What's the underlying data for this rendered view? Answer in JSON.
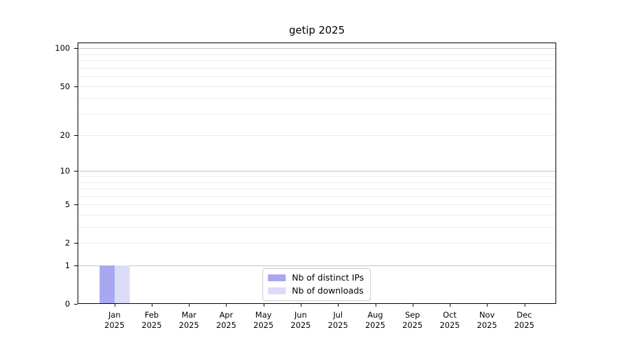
{
  "chart_data": {
    "type": "bar",
    "title": "getip 2025",
    "categories": [
      {
        "month": "Jan",
        "year": "2025"
      },
      {
        "month": "Feb",
        "year": "2025"
      },
      {
        "month": "Mar",
        "year": "2025"
      },
      {
        "month": "Apr",
        "year": "2025"
      },
      {
        "month": "May",
        "year": "2025"
      },
      {
        "month": "Jun",
        "year": "2025"
      },
      {
        "month": "Jul",
        "year": "2025"
      },
      {
        "month": "Aug",
        "year": "2025"
      },
      {
        "month": "Sep",
        "year": "2025"
      },
      {
        "month": "Oct",
        "year": "2025"
      },
      {
        "month": "Nov",
        "year": "2025"
      },
      {
        "month": "Dec",
        "year": "2025"
      }
    ],
    "series": [
      {
        "name": "Nb of distinct IPs",
        "color": "#a8a8f0",
        "values": [
          1,
          0,
          0,
          0,
          0,
          0,
          0,
          0,
          0,
          0,
          0,
          0
        ]
      },
      {
        "name": "Nb of downloads",
        "color": "#dcdcf8",
        "values": [
          1,
          0,
          0,
          0,
          0,
          0,
          0,
          0,
          0,
          0,
          0,
          0
        ]
      }
    ],
    "y_axis": {
      "scale": "log10(1+value)",
      "ylim": [
        0,
        111
      ],
      "tick_values": [
        0,
        1,
        2,
        5,
        10,
        20,
        50,
        100
      ],
      "major_gridlines": [
        1,
        10,
        100
      ],
      "minor_gridlines": [
        2,
        3,
        4,
        5,
        6,
        7,
        8,
        9,
        20,
        30,
        40,
        50,
        60,
        70,
        80,
        90
      ]
    },
    "legend": {
      "position": "lower center"
    },
    "grid": "horizontal only",
    "colors": {
      "major_grid": "#c3c3c3",
      "minor_grid": "#ebebeb",
      "axis": "#000000",
      "legend_border": "#cccccc",
      "background": "#ffffff",
      "text": "#000000"
    }
  }
}
